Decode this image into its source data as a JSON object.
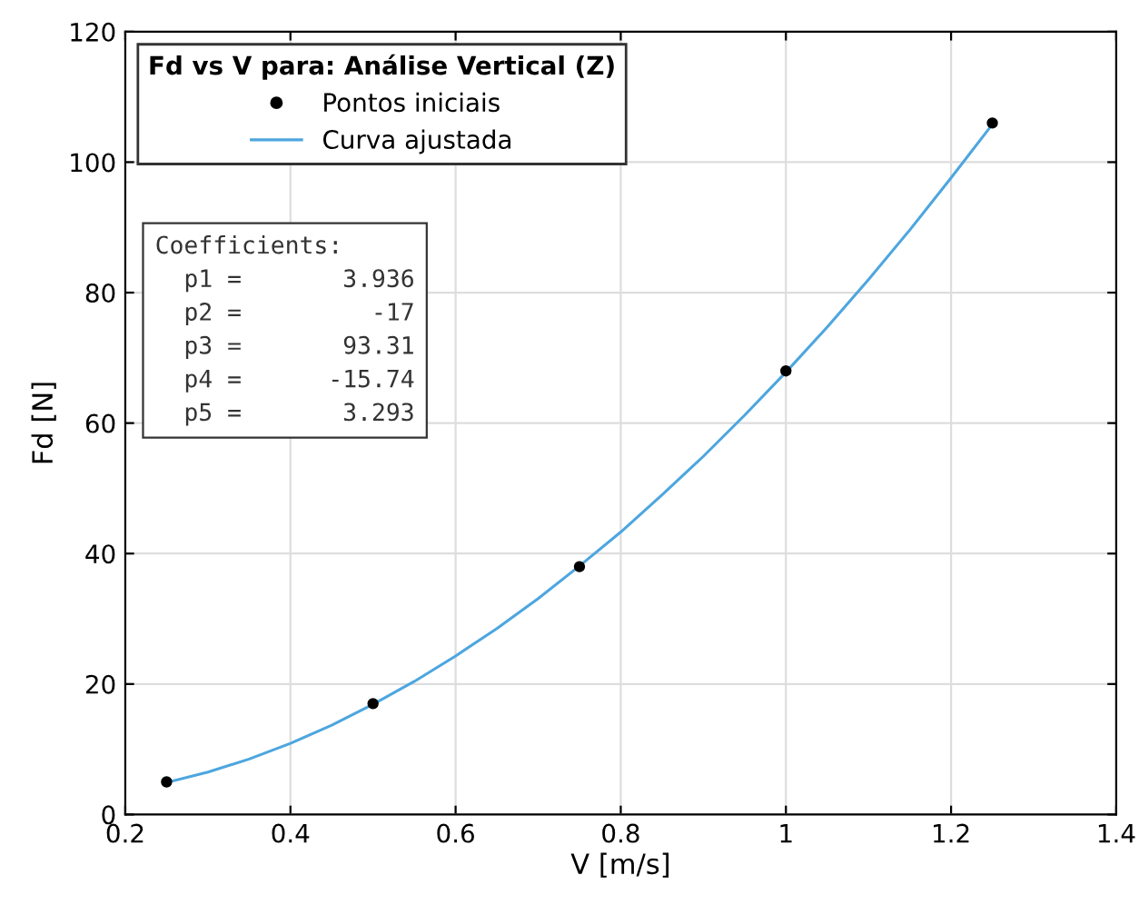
{
  "chart_data": {
    "type": "scatter",
    "xlabel": "V [m/s]",
    "ylabel": "Fd [N]",
    "legend_title": "Fd vs V para: Análise Vertical (Z)",
    "legend": "top left",
    "grid": true,
    "xlim": [
      0.2,
      1.4
    ],
    "xticks": [
      0.2,
      0.4,
      0.6,
      0.8,
      1,
      1.2,
      1.4
    ],
    "ylim": [
      0,
      120
    ],
    "yticks": [
      0,
      20,
      40,
      60,
      80,
      100,
      120
    ],
    "series": [
      {
        "name": "Pontos iniciais",
        "marker": "circle",
        "color": "#000000",
        "x": [
          0.25,
          0.5,
          0.75,
          1.0,
          1.25
        ],
        "values": [
          5,
          17,
          38,
          68,
          106
        ]
      },
      {
        "name": "Curva ajustada",
        "type": "line",
        "marker": "none",
        "line_style": "solid",
        "color": "#4da6df",
        "x": [
          0.25,
          0.3,
          0.35,
          0.4,
          0.45,
          0.5,
          0.55,
          0.6,
          0.65,
          0.7,
          0.75,
          0.8,
          0.85,
          0.9,
          0.95,
          1.0,
          1.05,
          1.1,
          1.15,
          1.2,
          1.25
        ],
        "values": [
          4.9,
          6.5,
          8.5,
          10.9,
          13.7,
          16.9,
          20.4,
          24.3,
          28.5,
          33.1,
          38.1,
          43.3,
          49.0,
          54.9,
          61.2,
          67.8,
          74.7,
          82.0,
          89.6,
          97.6,
          105.8
        ]
      }
    ],
    "annotations": [
      "Coefficients:",
      "  p1 =       3.936",
      "  p2 =         -17",
      "  p3 =       93.31",
      "  p4 =      -15.74",
      "  p5 =       3.293"
    ]
  }
}
